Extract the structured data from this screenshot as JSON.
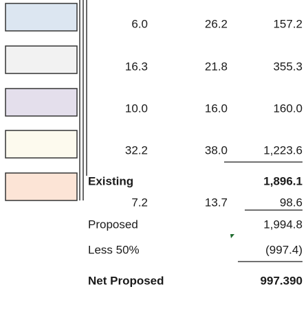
{
  "table": {
    "rows": [
      {
        "a": "6.0",
        "b": "26.2",
        "c": "157.2"
      },
      {
        "a": "16.3",
        "b": "21.8",
        "c": "355.3"
      },
      {
        "a": "10.0",
        "b": "16.0",
        "c": "160.0"
      },
      {
        "a": "32.2",
        "b": "38.0",
        "c": "1,223.6"
      }
    ],
    "existing": {
      "label": "Existing",
      "total": "1,896.1"
    },
    "extra_row": {
      "a": "7.2",
      "b": "13.7",
      "c": "98.6"
    },
    "proposed": {
      "label": "Proposed",
      "total": "1,994.8"
    },
    "less": {
      "label": "Less 50%",
      "total": "(997.4)"
    },
    "net": {
      "label": "Net Proposed",
      "total": "997.390"
    }
  }
}
